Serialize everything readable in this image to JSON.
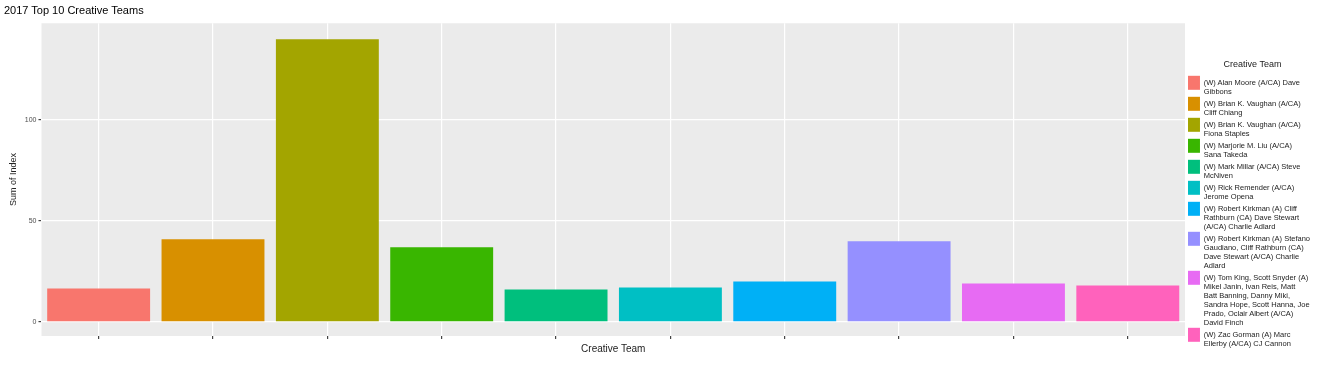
{
  "chart_data": {
    "type": "bar",
    "title": "2017 Top 10 Creative Teams",
    "xlabel": "Creative Team",
    "ylabel": "Sum of Index",
    "legend_title": "Creative Team",
    "categories": [
      null,
      null,
      null,
      null,
      null,
      null,
      null,
      null,
      null,
      null
    ],
    "series": [
      {
        "name": "(W) Alan Moore (A/CA) Dave Gibbons",
        "color": "#f8766d",
        "values": [
          16.5,
          null,
          null,
          null,
          null,
          null,
          null,
          null,
          null,
          null
        ]
      },
      {
        "name": "(W) Brian K. Vaughan (A/CA) Cliff Chiang",
        "color": "#d89000",
        "values": [
          null,
          41,
          null,
          null,
          null,
          null,
          null,
          null,
          null,
          null
        ]
      },
      {
        "name": "(W) Brian K. Vaughan (A/CA) Fiona Staples",
        "color": "#a3a500",
        "values": [
          null,
          null,
          140,
          null,
          null,
          null,
          null,
          null,
          null,
          null
        ]
      },
      {
        "name": "(W) Marjorie M. Liu (A/CA) Sana Takeda",
        "color": "#39b600",
        "values": [
          null,
          null,
          null,
          37,
          null,
          null,
          null,
          null,
          null,
          null
        ]
      },
      {
        "name": "(W) Mark Millar (A/CA) Steve McNiven",
        "color": "#00bf7d",
        "values": [
          null,
          null,
          null,
          null,
          16,
          null,
          null,
          null,
          null,
          null
        ]
      },
      {
        "name": "(W) Rick Remender (A/CA) Jerome Opena",
        "color": "#00bfc4",
        "values": [
          null,
          null,
          null,
          null,
          null,
          17,
          null,
          null,
          null,
          null
        ]
      },
      {
        "name": "(W) Robert Kirkman (A) Cliff Rathburn (CA) Dave Stewart (A/CA) Charlie Adlard",
        "color": "#00b0f6",
        "values": [
          null,
          null,
          null,
          null,
          null,
          null,
          20,
          null,
          null,
          null
        ]
      },
      {
        "name": "(W) Robert Kirkman (A) Stefano Gaudiano, Cliff Rathburn (CA) Dave Stewart (A/CA) Charlie Adlard",
        "color": "#9590ff",
        "values": [
          null,
          null,
          null,
          null,
          null,
          null,
          null,
          40,
          null,
          null
        ]
      },
      {
        "name": "(W) Tom King, Scott Snyder (A) Mikel Janin, Ivan Reis, Matt Batt Banning, Danny Miki, Sandra Hope, Scott Hanna, Joe Prado, Oclair Albert (A/CA) David Finch",
        "color": "#e76bf3",
        "values": [
          null,
          null,
          null,
          null,
          null,
          null,
          null,
          null,
          19,
          null
        ]
      },
      {
        "name": "(W) Zac Gorman (A) Marc Ellerby (A/CA) CJ Cannon",
        "color": "#ff62bc",
        "values": [
          null,
          null,
          null,
          null,
          null,
          null,
          null,
          null,
          null,
          18
        ]
      }
    ],
    "ylim": [
      -7,
      148
    ],
    "yticks": [
      0,
      50,
      100
    ],
    "grid": true,
    "legend": "right",
    "tick_labels": "y"
  }
}
